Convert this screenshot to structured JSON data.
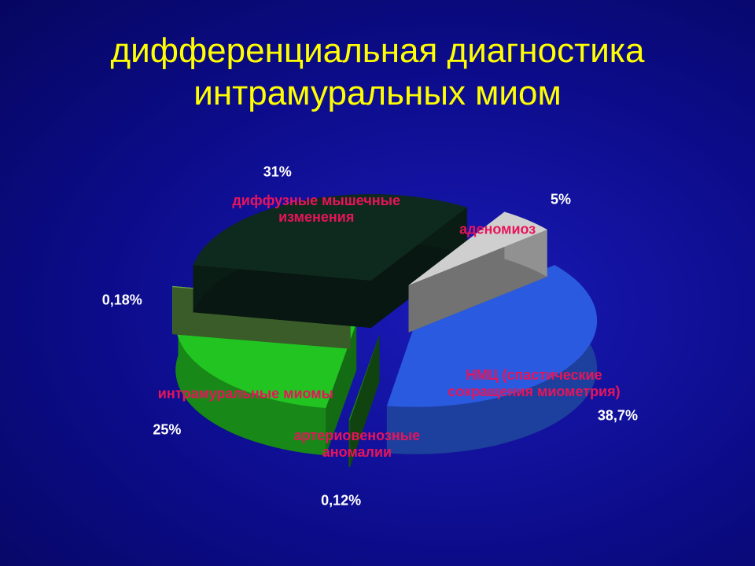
{
  "chart_data": {
    "type": "pie",
    "title": "дифференциальная диагностика интрамуральных миом",
    "categories": [
      "НМЦ (спастические сокращения миометрия)",
      "артериовенозные аномалии",
      "интрамуральные миомы",
      null,
      "диффузные мышечные изменения",
      "аденомиоз"
    ],
    "values": [
      38.7,
      0.12,
      25,
      0.18,
      31,
      5
    ],
    "value_labels": [
      "38,7%",
      "0,12%",
      "25%",
      "0,18%",
      "31%",
      "5%"
    ],
    "colors": [
      "#2a5ae0",
      "#1f7a1f",
      "#22c422",
      "#6aa84a",
      "#0e2a1e",
      "#cfcfcf"
    ]
  }
}
